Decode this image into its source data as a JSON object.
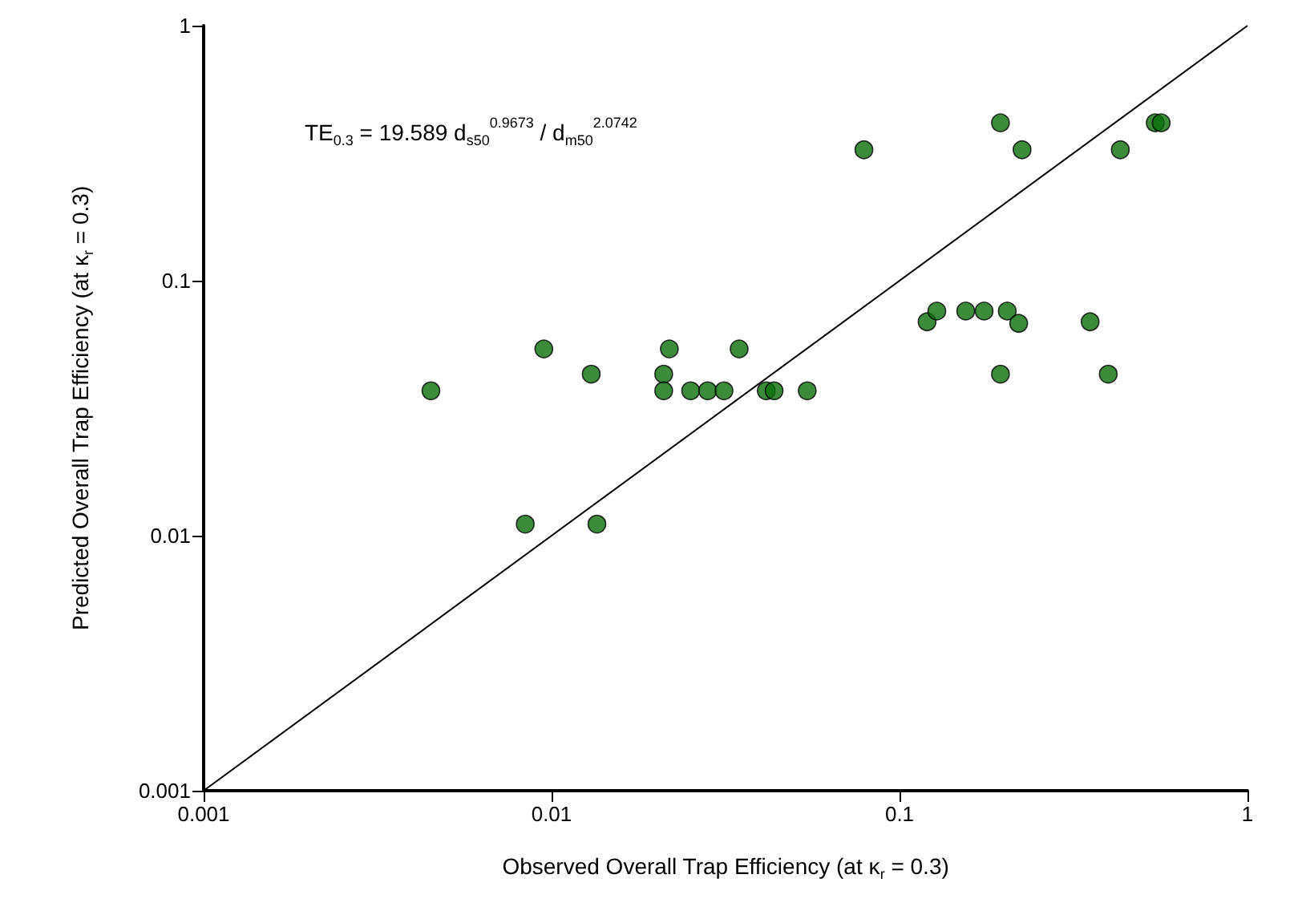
{
  "chart_data": {
    "type": "scatter",
    "xlabel": "Observed Overall Trap Efficiency (at κ$_{r}$ = 0.3)",
    "ylabel": "Predicted Overall Trap Efficiency (at κ$_{r}$ = 0.3)",
    "annotations": [
      "TE$_{0.3}$ = 19.589 d$_{s50}$$^{0.9673}$ / d$_{m50}$$^{2.0742}$"
    ],
    "log": "xy",
    "grid": false,
    "marker": "circle",
    "xlim": [
      0.001,
      1
    ],
    "xticks": [
      0.001,
      0.01,
      0.1,
      1
    ],
    "ylim": [
      0.001,
      1
    ],
    "yticks": [
      0.001,
      0.01,
      0.1,
      1
    ],
    "series": [
      {
        "color": "#0a6e0a",
        "x": [
          0.0045,
          0.0084,
          0.0095,
          0.013,
          0.0135,
          0.0218,
          0.021,
          0.021,
          0.0251,
          0.0281,
          0.0313,
          0.0346,
          0.0414,
          0.0436,
          0.0543,
          0.079,
          0.195,
          0.225,
          0.431,
          0.543,
          0.565,
          0.12,
          0.128,
          0.155,
          0.175,
          0.204,
          0.22,
          0.353,
          0.195,
          0.398
        ],
        "values": [
          0.037,
          0.0111,
          0.054,
          0.043,
          0.0111,
          0.054,
          0.043,
          0.037,
          0.037,
          0.037,
          0.037,
          0.054,
          0.037,
          0.037,
          0.037,
          0.326,
          0.416,
          0.326,
          0.326,
          0.416,
          0.416,
          0.069,
          0.076,
          0.076,
          0.076,
          0.076,
          0.068,
          0.069,
          0.043,
          0.043
        ]
      },
      {
        "type": "line",
        "color": "#000000",
        "marker": "none",
        "x": [
          0.001,
          1
        ],
        "values": [
          0.001,
          1
        ]
      }
    ]
  }
}
